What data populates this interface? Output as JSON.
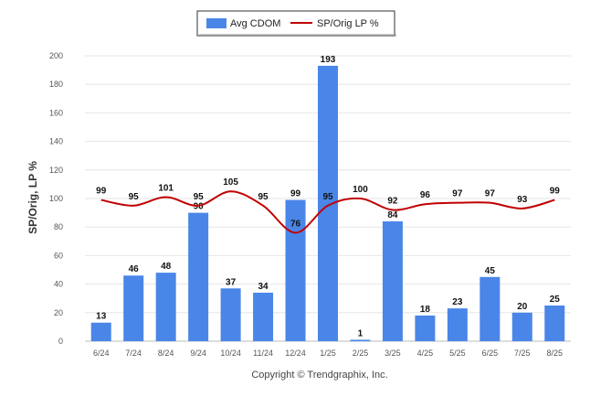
{
  "chart_data": {
    "type": "bar",
    "categories": [
      "6/24",
      "7/24",
      "8/24",
      "9/24",
      "10/24",
      "11/24",
      "12/24",
      "1/25",
      "2/25",
      "3/25",
      "4/25",
      "5/25",
      "6/25",
      "7/25",
      "8/25"
    ],
    "series": [
      {
        "name": "Avg CDOM",
        "type": "bar",
        "color": "#4a86e8",
        "values": [
          13,
          46,
          48,
          90,
          37,
          34,
          99,
          193,
          1,
          84,
          18,
          23,
          45,
          20,
          25
        ]
      },
      {
        "name": "SP/Orig LP %",
        "type": "line",
        "color": "#c00000",
        "values": [
          99,
          95,
          101,
          95,
          105,
          95,
          76,
          95,
          100,
          92,
          96,
          97,
          97,
          93,
          99
        ]
      }
    ],
    "ylabel": "SP/Orig, LP %",
    "xlabel": "",
    "ylim": [
      0,
      200
    ],
    "yticks": [
      0,
      20,
      40,
      60,
      80,
      100,
      120,
      140,
      160,
      180,
      200
    ],
    "grid": true,
    "legend_position": "top-center"
  },
  "footer": {
    "copyright": "Copyright © Trendgraphix, Inc."
  }
}
